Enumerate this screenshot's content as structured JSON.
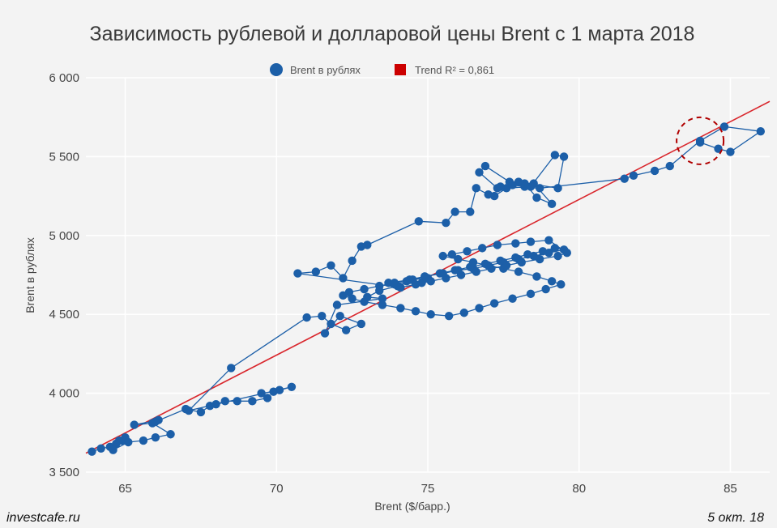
{
  "chart_data": {
    "type": "scatter",
    "title": "Зависимость рублевой и долларовой цены Brent с 1 марта 2018",
    "xlabel": "Brent ($/барр.)",
    "ylabel": "Brent в рублях",
    "xlim": [
      63.7,
      86.3
    ],
    "ylim": [
      3500,
      6000
    ],
    "x_ticks": [
      65,
      70,
      75,
      80,
      85
    ],
    "y_ticks": [
      3500,
      4000,
      4500,
      5000,
      5500,
      6000
    ],
    "x_tick_labels": [
      "65",
      "70",
      "75",
      "80",
      "85"
    ],
    "y_tick_labels": [
      "3 500",
      "4 000",
      "4 500",
      "5 000",
      "5 500",
      "6 000"
    ],
    "grid": true,
    "legend_position": "top-center",
    "colors": {
      "series": "#1c5fa8",
      "trend": "#d9262c",
      "highlight": "#b00000"
    },
    "series": [
      {
        "name": "Brent в рублях",
        "type": "line-markers",
        "x": [
          63.9,
          64.2,
          64.5,
          64.7,
          64.9,
          65.0,
          64.8,
          64.6,
          65.1,
          65.6,
          66.0,
          66.5,
          65.9,
          65.3,
          66.1,
          66.0,
          67.0,
          67.5,
          67.8,
          68.0,
          68.3,
          68.7,
          69.2,
          69.7,
          69.5,
          69.9,
          70.1,
          70.5,
          67.1,
          68.5,
          71.0,
          71.5,
          71.8,
          72.3,
          72.8,
          72.1,
          71.6,
          72.0,
          73.5,
          73.0,
          73.4,
          74.0,
          73.7,
          74.5,
          75.0,
          74.8,
          73.9,
          74.3,
          74.9,
          75.5,
          76.0,
          76.5,
          77.0,
          77.5,
          78.0,
          78.5,
          79.0,
          79.5,
          79.2,
          78.8,
          78.3,
          77.9,
          77.4,
          76.9,
          76.4,
          75.9,
          75.4,
          74.9,
          74.4,
          73.9,
          73.4,
          72.9,
          72.4,
          72.2,
          72.5,
          72.9,
          73.5,
          74.1,
          74.6,
          75.1,
          75.7,
          76.2,
          76.7,
          77.2,
          77.8,
          78.4,
          78.9,
          79.4,
          79.1,
          78.6,
          78.0,
          77.5,
          77.0,
          76.5,
          76.0,
          75.5,
          75.8,
          76.3,
          76.8,
          77.3,
          77.9,
          78.4,
          79.0,
          79.6,
          79.3,
          78.7,
          78.1,
          77.6,
          77.1,
          76.6,
          76.1,
          75.6,
          75.1,
          74.6,
          74.1,
          70.7,
          71.3,
          71.8,
          72.2,
          72.5,
          72.8,
          73.0,
          74.7,
          75.6,
          75.9,
          76.4,
          76.6,
          77.0,
          77.2,
          77.6,
          78.4,
          79.2,
          79.5,
          79.3,
          78.0,
          77.3,
          76.7,
          76.9,
          77.7,
          78.2,
          78.6,
          79.1,
          78.5,
          78.2,
          77.8,
          77.4,
          78.7,
          81.5,
          81.8,
          82.5,
          83.0,
          84.0,
          84.8,
          86.0,
          85.0,
          84.6,
          84.0
        ],
        "y": [
          3630,
          3650,
          3660,
          3680,
          3700,
          3720,
          3700,
          3640,
          3690,
          3700,
          3720,
          3740,
          3810,
          3800,
          3830,
          3820,
          3900,
          3880,
          3920,
          3930,
          3950,
          3950,
          3950,
          3970,
          4000,
          4010,
          4020,
          4040,
          3890,
          4160,
          4480,
          4490,
          4440,
          4400,
          4440,
          4490,
          4380,
          4560,
          4600,
          4610,
          4650,
          4680,
          4700,
          4720,
          4730,
          4700,
          4690,
          4710,
          4740,
          4760,
          4780,
          4790,
          4810,
          4830,
          4850,
          4870,
          4890,
          4910,
          4920,
          4900,
          4880,
          4860,
          4840,
          4820,
          4800,
          4780,
          4760,
          4740,
          4720,
          4700,
          4680,
          4660,
          4640,
          4620,
          4600,
          4580,
          4560,
          4540,
          4520,
          4500,
          4490,
          4510,
          4540,
          4570,
          4600,
          4630,
          4660,
          4690,
          4710,
          4740,
          4770,
          4790,
          4810,
          4830,
          4850,
          4870,
          4880,
          4900,
          4920,
          4940,
          4950,
          4960,
          4970,
          4890,
          4870,
          4850,
          4830,
          4810,
          4790,
          4770,
          4750,
          4730,
          4710,
          4690,
          4670,
          4760,
          4770,
          4810,
          4730,
          4840,
          4930,
          4940,
          5090,
          5080,
          5150,
          5150,
          5300,
          5260,
          5250,
          5300,
          5310,
          5510,
          5500,
          5300,
          5340,
          5300,
          5400,
          5440,
          5340,
          5330,
          5240,
          5200,
          5330,
          5310,
          5320,
          5310,
          5300,
          5360,
          5380,
          5410,
          5440,
          5600,
          5690,
          5660,
          5530,
          5550,
          5590
        ]
      },
      {
        "name": "Trend R² = 0,861",
        "type": "line",
        "x": [
          63.7,
          86.3
        ],
        "y": [
          3620,
          5850
        ]
      }
    ],
    "annotations": [
      {
        "type": "dashed-circle",
        "x": 84.0,
        "y": 5600
      }
    ]
  },
  "footer": {
    "source": "investcafe.ru",
    "date": "5 окт. 18"
  }
}
